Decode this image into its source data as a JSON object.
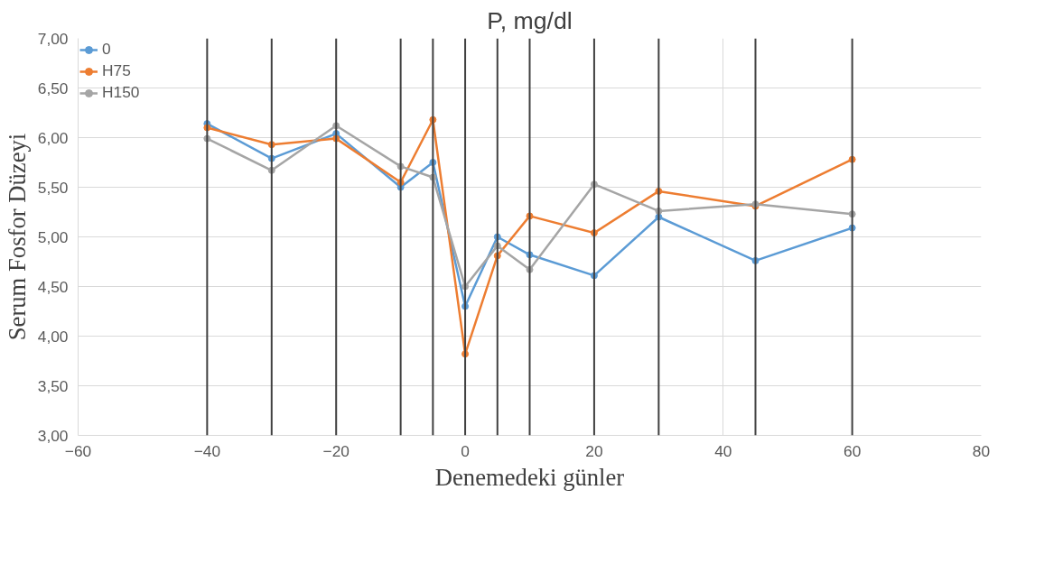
{
  "chart_data": {
    "type": "line",
    "title": "P, mg/dl",
    "xlabel": "Denemedeki günler",
    "ylabel": "Serum Fosfor Düzeyi",
    "x": [
      -40,
      -30,
      -20,
      -10,
      -5,
      0,
      5,
      10,
      20,
      30,
      45,
      60
    ],
    "series": [
      {
        "name": "0",
        "color": "#5b9bd5",
        "values": [
          6.14,
          5.79,
          6.04,
          5.5,
          5.75,
          4.3,
          5.0,
          4.82,
          4.61,
          5.2,
          4.76,
          5.09
        ]
      },
      {
        "name": "H75",
        "color": "#ed7d31",
        "values": [
          6.1,
          5.93,
          5.99,
          5.55,
          6.18,
          3.82,
          4.81,
          5.21,
          5.04,
          5.46,
          5.31,
          5.78
        ]
      },
      {
        "name": "H150",
        "color": "#a5a5a5",
        "values": [
          5.99,
          5.67,
          6.12,
          5.71,
          5.6,
          4.5,
          4.91,
          4.67,
          5.53,
          5.26,
          5.33,
          5.23
        ]
      }
    ],
    "xlim": [
      -60,
      80
    ],
    "xticks": [
      -60,
      -40,
      -20,
      0,
      20,
      40,
      60,
      80
    ],
    "ylim": [
      3.0,
      7.0
    ],
    "yticks": [
      {
        "value": 3.0,
        "label": "3,00"
      },
      {
        "value": 3.5,
        "label": "3,50"
      },
      {
        "value": 4.0,
        "label": "4,00"
      },
      {
        "value": 4.5,
        "label": "4,50"
      },
      {
        "value": 5.0,
        "label": "5,00"
      },
      {
        "value": 5.5,
        "label": "5,50"
      },
      {
        "value": 6.0,
        "label": "6,00"
      },
      {
        "value": 6.5,
        "label": "6,50"
      },
      {
        "value": 7.0,
        "label": "7,00"
      }
    ],
    "ref_lines": [
      {
        "axis": "x",
        "value": -40,
        "color": "#404040"
      },
      {
        "axis": "x",
        "value": -30,
        "color": "#404040"
      },
      {
        "axis": "x",
        "value": -20,
        "color": "#404040"
      },
      {
        "axis": "x",
        "value": -10,
        "color": "#404040"
      },
      {
        "axis": "x",
        "value": -5,
        "color": "#404040"
      },
      {
        "axis": "x",
        "value": 0,
        "color": "#404040"
      },
      {
        "axis": "x",
        "value": 5,
        "color": "#404040"
      },
      {
        "axis": "x",
        "value": 10,
        "color": "#404040"
      },
      {
        "axis": "x",
        "value": 20,
        "color": "#404040"
      },
      {
        "axis": "x",
        "value": 30,
        "color": "#404040"
      },
      {
        "axis": "x",
        "value": 45,
        "color": "#404040"
      },
      {
        "axis": "x",
        "value": 60,
        "color": "#404040"
      }
    ],
    "grid": true,
    "legend": "top left",
    "marker": "circle",
    "line_style": "solid"
  }
}
